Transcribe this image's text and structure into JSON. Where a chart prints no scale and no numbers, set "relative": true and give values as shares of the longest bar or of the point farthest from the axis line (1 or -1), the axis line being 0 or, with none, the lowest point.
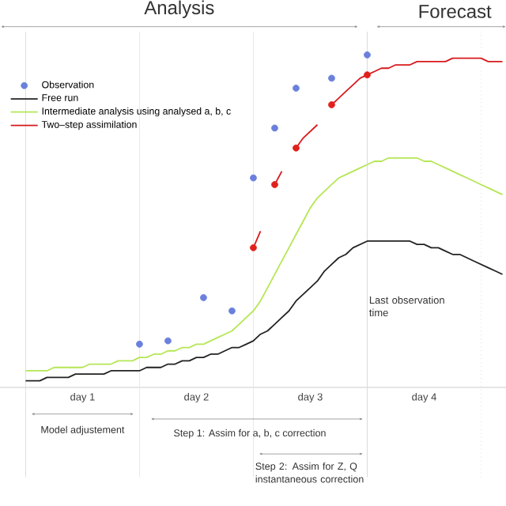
{
  "chart_data": {
    "type": "line",
    "relative": true,
    "legend": "top left",
    "categories": [
      null,
      null,
      null,
      null,
      null,
      null,
      null,
      null,
      null,
      null,
      null,
      null,
      "day 1",
      null,
      null,
      null,
      null,
      null,
      null,
      null,
      null,
      null,
      null,
      null,
      null,
      null,
      null,
      null,
      "day 2",
      null,
      null,
      null,
      null,
      null,
      null,
      null,
      null,
      null,
      null,
      null,
      null,
      null,
      null,
      null,
      "day 3",
      null,
      null,
      null,
      null,
      null,
      null,
      null,
      null,
      null,
      null,
      null,
      null,
      null,
      null,
      null,
      "day 4",
      null,
      null,
      null,
      null,
      null,
      null,
      null,
      null,
      null,
      null,
      null
    ],
    "series": [
      {
        "name": "Observation",
        "type": "scatter",
        "color": "#6a80dc",
        "values": [
          null,
          null,
          null,
          null,
          null,
          null,
          null,
          null,
          null,
          null,
          null,
          null,
          null,
          null,
          null,
          null,
          null,
          null,
          null,
          null,
          0.13,
          null,
          null,
          null,
          0.14,
          null,
          null,
          null,
          null,
          0.27,
          null,
          null,
          null,
          0.23,
          null,
          null,
          0.63,
          null,
          null,
          0.78,
          null,
          null,
          0.9,
          null,
          null,
          null,
          null,
          0.93,
          null,
          null,
          null,
          null,
          1.0,
          null,
          null,
          null,
          null,
          null,
          null,
          null,
          null,
          null,
          null,
          null,
          null,
          null,
          null,
          null,
          null,
          null,
          null,
          null
        ]
      },
      {
        "name": "Free run",
        "color": "#222222",
        "values": [
          null,
          null,
          null,
          null,
          0.02,
          0.02,
          0.02,
          0.03,
          0.03,
          0.03,
          0.03,
          0.04,
          0.04,
          0.04,
          0.04,
          0.04,
          0.05,
          0.05,
          0.05,
          0.05,
          0.05,
          0.06,
          0.06,
          0.06,
          0.07,
          0.07,
          0.08,
          0.08,
          0.09,
          0.09,
          0.1,
          0.1,
          0.11,
          0.12,
          0.12,
          0.13,
          0.14,
          0.16,
          0.17,
          0.19,
          0.21,
          0.23,
          0.26,
          0.28,
          0.3,
          0.32,
          0.35,
          0.37,
          0.39,
          0.4,
          0.42,
          0.43,
          0.44,
          0.44,
          0.44,
          0.44,
          0.44,
          0.44,
          0.44,
          0.43,
          0.43,
          0.42,
          0.42,
          0.41,
          0.4,
          0.4,
          0.39,
          0.38,
          0.37,
          0.36,
          0.35,
          0.34
        ]
      },
      {
        "name": "Intermediate analysis using analysed a, b, c",
        "color": "#b5e655",
        "values": [
          null,
          null,
          null,
          null,
          0.05,
          0.05,
          0.05,
          0.05,
          0.06,
          0.06,
          0.06,
          0.06,
          0.06,
          0.07,
          0.07,
          0.07,
          0.07,
          0.08,
          0.08,
          0.08,
          0.09,
          0.09,
          0.1,
          0.1,
          0.11,
          0.11,
          0.12,
          0.12,
          0.13,
          0.13,
          0.14,
          0.15,
          0.16,
          0.17,
          0.19,
          0.21,
          0.23,
          0.26,
          0.3,
          0.34,
          0.38,
          0.42,
          0.46,
          0.5,
          0.54,
          0.57,
          0.59,
          0.61,
          0.63,
          0.64,
          0.65,
          0.66,
          0.67,
          0.68,
          0.68,
          0.69,
          0.69,
          0.69,
          0.69,
          0.69,
          0.68,
          0.68,
          0.67,
          0.66,
          0.65,
          0.64,
          0.63,
          0.62,
          0.61,
          0.6,
          0.59,
          0.58
        ]
      },
      {
        "name": "Two–step assimilation",
        "color": "#d7191c",
        "values": [
          null,
          null,
          null,
          null,
          null,
          null,
          null,
          null,
          null,
          null,
          null,
          null,
          null,
          null,
          null,
          null,
          null,
          null,
          null,
          null,
          null,
          null,
          null,
          null,
          null,
          null,
          null,
          null,
          null,
          null,
          null,
          null,
          null,
          null,
          null,
          null,
          0.42,
          0.47,
          null,
          0.61,
          0.65,
          null,
          0.72,
          0.75,
          0.77,
          0.79,
          null,
          0.85,
          0.87,
          0.89,
          0.91,
          0.93,
          0.94,
          0.95,
          0.96,
          0.96,
          0.97,
          0.97,
          0.97,
          0.98,
          0.98,
          0.98,
          0.98,
          0.98,
          0.99,
          0.99,
          0.99,
          0.99,
          0.99,
          0.98,
          0.98,
          0.98
        ]
      },
      {
        "type": "scatter",
        "color": "#e0201c",
        "values": [
          null,
          null,
          null,
          null,
          null,
          null,
          null,
          null,
          null,
          null,
          null,
          null,
          null,
          null,
          null,
          null,
          null,
          null,
          null,
          null,
          null,
          null,
          null,
          null,
          null,
          null,
          null,
          null,
          null,
          null,
          null,
          null,
          null,
          null,
          null,
          null,
          0.42,
          null,
          null,
          0.61,
          null,
          null,
          0.72,
          null,
          null,
          null,
          null,
          0.85,
          null,
          null,
          null,
          null,
          0.94,
          null,
          null,
          null,
          null,
          null,
          null,
          null,
          null,
          null,
          null,
          null,
          null,
          null,
          null,
          null,
          null,
          null,
          null,
          null
        ]
      }
    ],
    "annotations": [
      "Analysis",
      "Forecast",
      "Model adjustement",
      "Step 1: Assim for a, b, c correction",
      "Step 2: Assim for Z, Q instantaneous correction",
      "Last observation time"
    ]
  }
}
